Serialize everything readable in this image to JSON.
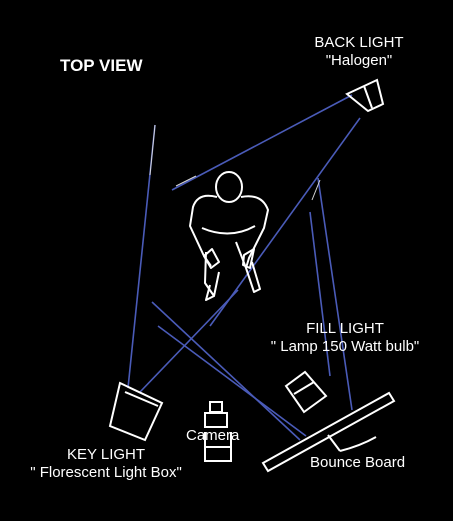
{
  "diagram": {
    "title": "TOP VIEW",
    "back_light": {
      "name": "BACK LIGHT",
      "type": "\"Halogen\""
    },
    "fill_light": {
      "name": "FILL LIGHT",
      "type": "\" Lamp 150 Watt bulb\""
    },
    "key_light": {
      "name": "KEY LIGHT",
      "type": "\" Florescent Light Box\""
    },
    "camera": "Camera",
    "bounce_board": "Bounce Board"
  },
  "colors": {
    "background": "#000000",
    "outline": "#ffffff",
    "beam": "#4a5bb8"
  }
}
